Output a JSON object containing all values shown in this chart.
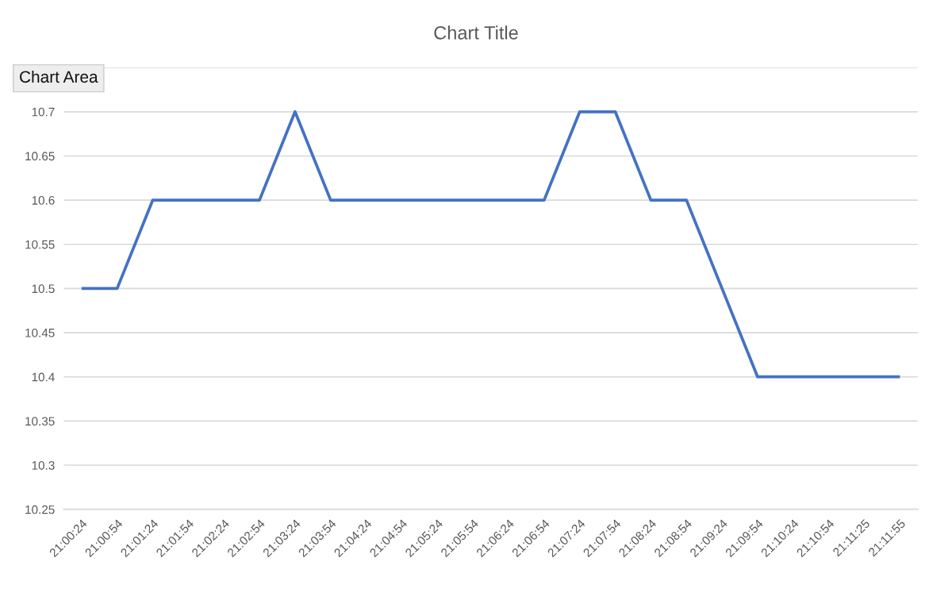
{
  "chart_data": {
    "type": "line",
    "title": "Chart Title",
    "annotations": [
      "Chart Area"
    ],
    "categories": [
      "21:00:24",
      "21:00:54",
      "21:01:24",
      "21:01:54",
      "21:02:24",
      "21:02:54",
      "21:03:24",
      "21:03:54",
      "21:04:24",
      "21:04:54",
      "21:05:24",
      "21:05:54",
      "21:06:24",
      "21:06:54",
      "21:07:24",
      "21:07:54",
      "21:08:24",
      "21:08:54",
      "21:09:24",
      "21:09:54",
      "21:10:24",
      "21:10:54",
      "21:11:25",
      "21:11:55"
    ],
    "series": [
      {
        "color": "#4472c4",
        "values": [
          10.5,
          10.5,
          10.6,
          10.6,
          10.6,
          10.6,
          10.7,
          10.6,
          10.6,
          10.6,
          10.6,
          10.6,
          10.6,
          10.6,
          10.7,
          10.7,
          10.6,
          10.6,
          10.5,
          10.4,
          10.4,
          10.4,
          10.4,
          10.4
        ]
      }
    ],
    "ylim": [
      10.25,
      10.75
    ],
    "yticks": [
      10.25,
      10.3,
      10.35,
      10.4,
      10.45,
      10.5,
      10.55,
      10.6,
      10.65,
      10.7,
      {
        "value": 10.75,
        "label": null
      }
    ],
    "grid": "y",
    "marker": "none",
    "line_style": "solid"
  }
}
